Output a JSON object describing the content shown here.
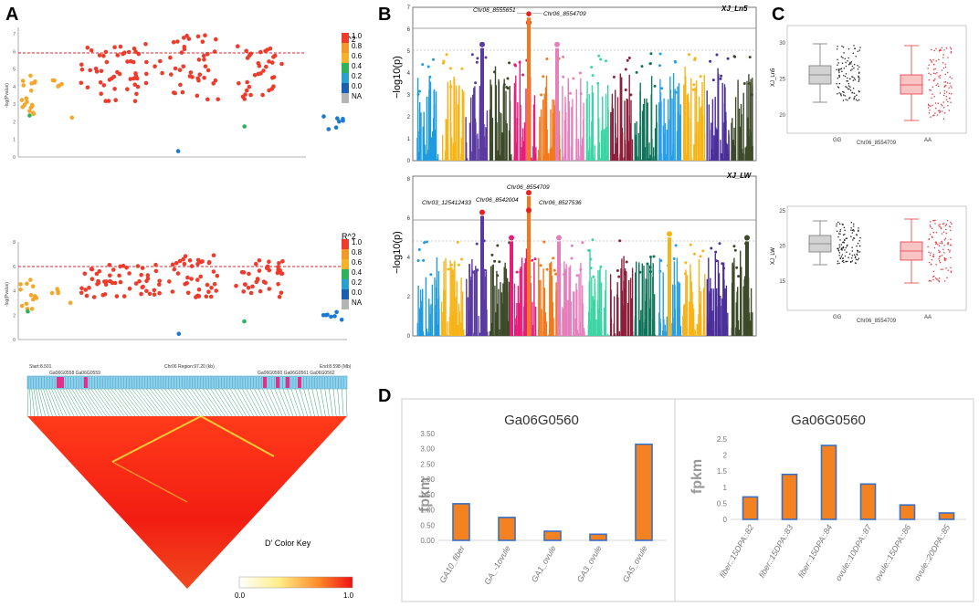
{
  "panels": {
    "A": {
      "label": "A",
      "scatter_top": {
        "ylabel": "-log(Pvalue)",
        "yticks": [
          "0",
          "1",
          "2",
          "3",
          "4",
          "5",
          "6",
          "7"
        ],
        "legend_title": "R^2",
        "legend_labels": [
          "1.0",
          "0.8",
          "0.6",
          "0.4",
          "0.2",
          "0.0",
          "NA"
        ]
      },
      "scatter_bottom": {
        "ylabel": "-log(Pvalue)",
        "yticks": [
          "0",
          "2",
          "4",
          "6",
          "8"
        ],
        "legend_title": "R^2",
        "legend_labels": [
          "1.0",
          "0.8",
          "0.6",
          "0.4",
          "0.2",
          "0.0",
          "NA"
        ]
      },
      "ld": {
        "start_label": "Start:8.501",
        "region_label": "Chr06 Region:97.20 (kb)",
        "end_label": "End:8.598 (Mb)",
        "genes_left": "Ga06G0558 Ga06G0559",
        "genes_right": "Ga06G0560 Ga06G0561 Ga06G0562",
        "color_key_title": "D' Color Key",
        "key_min": "0.0",
        "key_max": "1.0"
      }
    },
    "B": {
      "label": "B",
      "top": {
        "trait": "XJ_Ln5",
        "ylabel": "−log10(p)",
        "yticks": [
          "0",
          "1",
          "2",
          "3",
          "4",
          "5",
          "6",
          "7"
        ],
        "annotations": [
          "Chr06_8555651",
          "Chr06_8554709"
        ]
      },
      "bottom": {
        "trait": "XJ_LW",
        "ylabel": "−log10(p)",
        "yticks": [
          "0",
          "2",
          "4",
          "6",
          "8"
        ],
        "annotations": [
          "Chr06_8554709",
          "Chr03_125412433",
          "Chr06_8542004",
          "Chr06_8527536"
        ]
      }
    },
    "C": {
      "label": "C",
      "top": {
        "ylabel": "XJ_Ln5",
        "xlabel": "Chr06_8554709",
        "groups": [
          "GG",
          "AA"
        ],
        "yticks": [
          "20",
          "25",
          "30"
        ]
      },
      "bottom": {
        "ylabel": "XJ_LW",
        "xlabel": "Chr06_8554709",
        "groups": [
          "GG",
          "AA"
        ],
        "yticks": [
          "15",
          "20",
          "25"
        ]
      }
    },
    "D": {
      "label": "D"
    }
  },
  "chart_data": [
    {
      "type": "bar",
      "title": "Ga06G0560",
      "ylabel": "fpkm",
      "xlabel": "",
      "categories": [
        "GA10_fiber",
        "GA_-1ovule",
        "GA1_ovule",
        "GA3_ovule",
        "GA5_ovule"
      ],
      "values": [
        1.2,
        0.75,
        0.3,
        0.2,
        3.15
      ],
      "ylim": [
        0,
        3.5
      ],
      "yticks": [
        "0.00",
        "0.50",
        "1.00",
        "1.50",
        "2.00",
        "2.50",
        "3.00",
        "3.50"
      ],
      "color": "#f58220",
      "edge_color": "#3a6fc4"
    },
    {
      "type": "bar",
      "title": "Ga06G0560",
      "ylabel": "fpkm",
      "xlabel": "",
      "categories": [
        "fiber::15DPA::82",
        "fiber::15DPA::83",
        "fiber::15DPA::84",
        "ovule::10DPA::87",
        "ovule::15DPA::86",
        "ovule::20DPA::85"
      ],
      "values": [
        0.7,
        1.4,
        2.3,
        1.1,
        0.45,
        0.2
      ],
      "ylim": [
        0,
        2.5
      ],
      "yticks": [
        "0",
        "0.5",
        "1",
        "1.5",
        "2",
        "2.5"
      ],
      "color": "#f58220",
      "edge_color": "#3a6fc4"
    }
  ]
}
